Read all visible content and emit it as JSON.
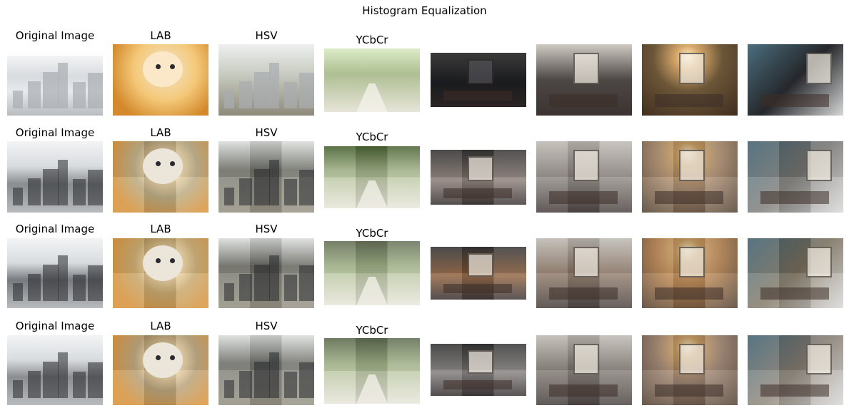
{
  "figure": {
    "title": "Histogram Equalization"
  },
  "rows": [
    {
      "labels": [
        "Original Image",
        "LAB",
        "HSV",
        "YCbCr"
      ]
    },
    {
      "labels": [
        "Original Image",
        "LAB",
        "HSV",
        "YCbCr"
      ]
    },
    {
      "labels": [
        "Original Image",
        "LAB",
        "HSV",
        "YCbCr"
      ]
    },
    {
      "labels": [
        "Original Image",
        "LAB",
        "HSV",
        "YCbCr"
      ]
    }
  ],
  "columns": [
    {
      "subject": "city-street"
    },
    {
      "subject": "kitten"
    },
    {
      "subject": "city-skyline"
    },
    {
      "subject": "forest-path"
    },
    {
      "subject": "living-room"
    },
    {
      "subject": "living-room-windows"
    },
    {
      "subject": "lounge-chandelier"
    },
    {
      "subject": "bedroom"
    }
  ],
  "palette": {
    "row1": [
      "#e7eaec",
      "#f4c878",
      "#c9cdc3",
      "#dcecc8",
      "#1a1b1e",
      "#4d4745",
      "#6c5638",
      "#25272b"
    ],
    "row2": [
      "#8a8d90",
      "#b6a478",
      "#76786f",
      "#4f6b36",
      "#857670",
      "#8d8580",
      "#a08062",
      "#7c7a76"
    ],
    "row3": [
      "#777a7e",
      "#c3a060",
      "#707068",
      "#6f7a5e",
      "#8a5a35",
      "#8d7766",
      "#b07a45",
      "#7f7461"
    ],
    "row4": [
      "#8b8d90",
      "#b39a6e",
      "#7a7b75",
      "#667556",
      "#7b7775",
      "#7e7670",
      "#927662",
      "#8c8276"
    ]
  }
}
